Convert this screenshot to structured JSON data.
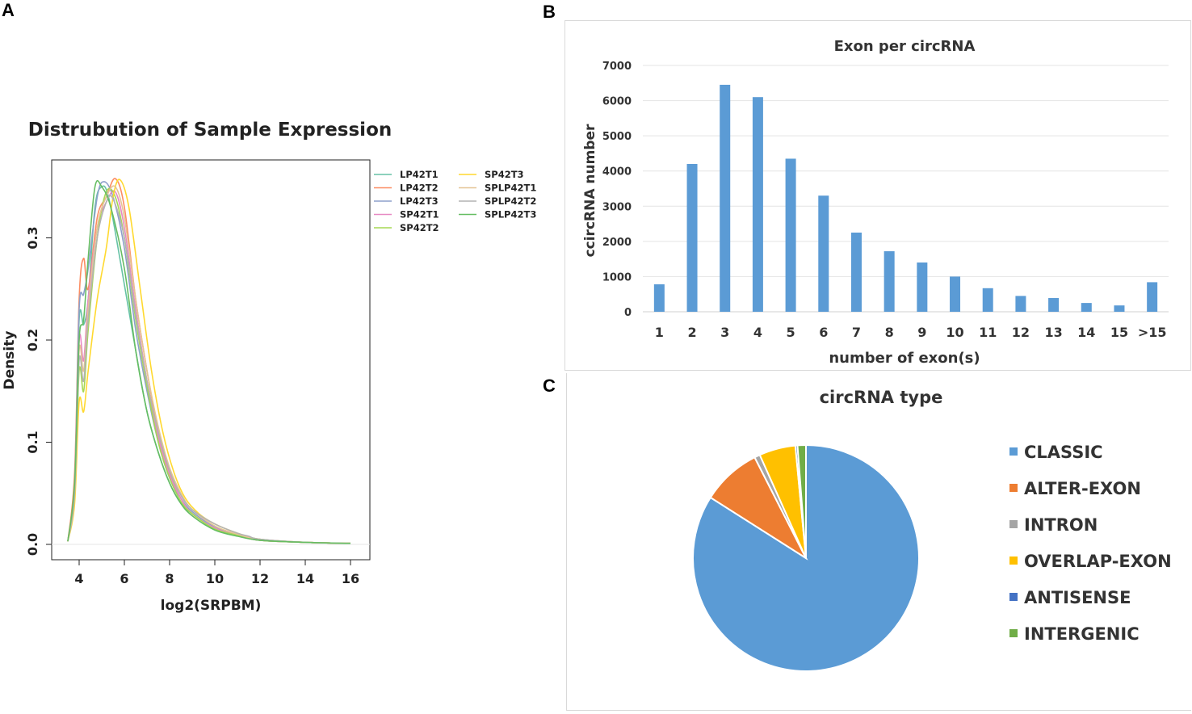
{
  "panels": {
    "a": "A",
    "b": "B",
    "c": "C"
  },
  "chart_data": [
    {
      "id": "density",
      "type": "line",
      "title": "Distrubution of Sample Expression",
      "xlabel": "log2(SRPBM)",
      "ylabel": "Density",
      "xlim": [
        3,
        16.5
      ],
      "ylim": [
        0,
        0.365
      ],
      "xticks": [
        4,
        6,
        8,
        10,
        12,
        14,
        16
      ],
      "yticks": [
        0.0,
        0.1,
        0.2,
        0.3
      ],
      "ytick_labels": [
        "0.0",
        "0.1",
        "0.2",
        "0.3"
      ],
      "legend_position": "top-right",
      "series": [
        {
          "name": "LP42T1",
          "color": "#66c2a5",
          "points": [
            [
              3.5,
              0.003
            ],
            [
              3.8,
              0.06
            ],
            [
              4.0,
              0.22
            ],
            [
              4.2,
              0.215
            ],
            [
              4.4,
              0.24
            ],
            [
              4.7,
              0.33
            ],
            [
              5.0,
              0.35
            ],
            [
              5.3,
              0.34
            ],
            [
              5.8,
              0.28
            ],
            [
              6.5,
              0.19
            ],
            [
              7.0,
              0.13
            ],
            [
              7.5,
              0.09
            ],
            [
              8.0,
              0.06
            ],
            [
              8.5,
              0.04
            ],
            [
              9.0,
              0.03
            ],
            [
              10.0,
              0.015
            ],
            [
              11.0,
              0.009
            ],
            [
              12.0,
              0.004
            ],
            [
              14.0,
              0.002
            ],
            [
              16.0,
              0.001
            ]
          ]
        },
        {
          "name": "LP42T2",
          "color": "#fc8d62",
          "points": [
            [
              3.5,
              0.003
            ],
            [
              3.8,
              0.07
            ],
            [
              4.0,
              0.24
            ],
            [
              4.2,
              0.28
            ],
            [
              4.4,
              0.25
            ],
            [
              4.8,
              0.32
            ],
            [
              5.2,
              0.34
            ],
            [
              5.6,
              0.358
            ],
            [
              6.0,
              0.33
            ],
            [
              6.5,
              0.24
            ],
            [
              7.0,
              0.17
            ],
            [
              7.5,
              0.11
            ],
            [
              8.0,
              0.07
            ],
            [
              8.5,
              0.045
            ],
            [
              9.0,
              0.03
            ],
            [
              10.0,
              0.016
            ],
            [
              11.0,
              0.009
            ],
            [
              12.0,
              0.004
            ],
            [
              14.0,
              0.002
            ],
            [
              16.0,
              0.001
            ]
          ]
        },
        {
          "name": "LP42T3",
          "color": "#8da0cb",
          "points": [
            [
              3.5,
              0.003
            ],
            [
              3.8,
              0.06
            ],
            [
              4.0,
              0.23
            ],
            [
              4.2,
              0.245
            ],
            [
              4.4,
              0.27
            ],
            [
              4.8,
              0.34
            ],
            [
              5.1,
              0.355
            ],
            [
              5.5,
              0.34
            ],
            [
              6.0,
              0.29
            ],
            [
              6.5,
              0.21
            ],
            [
              7.0,
              0.15
            ],
            [
              7.5,
              0.1
            ],
            [
              8.0,
              0.065
            ],
            [
              8.5,
              0.045
            ],
            [
              9.0,
              0.032
            ],
            [
              10.0,
              0.017
            ],
            [
              11.0,
              0.01
            ],
            [
              12.0,
              0.005
            ],
            [
              14.0,
              0.002
            ],
            [
              16.0,
              0.001
            ]
          ]
        },
        {
          "name": "SP42T1",
          "color": "#e78ac3",
          "points": [
            [
              3.5,
              0.003
            ],
            [
              3.8,
              0.05
            ],
            [
              4.0,
              0.2
            ],
            [
              4.2,
              0.18
            ],
            [
              4.4,
              0.24
            ],
            [
              4.8,
              0.31
            ],
            [
              5.2,
              0.335
            ],
            [
              5.6,
              0.345
            ],
            [
              6.0,
              0.31
            ],
            [
              6.5,
              0.23
            ],
            [
              7.0,
              0.16
            ],
            [
              7.5,
              0.105
            ],
            [
              8.0,
              0.068
            ],
            [
              8.5,
              0.045
            ],
            [
              9.0,
              0.03
            ],
            [
              10.0,
              0.016
            ],
            [
              11.0,
              0.009
            ],
            [
              12.0,
              0.004
            ],
            [
              14.0,
              0.002
            ],
            [
              16.0,
              0.001
            ]
          ]
        },
        {
          "name": "SP42T2",
          "color": "#a6d854",
          "points": [
            [
              3.5,
              0.003
            ],
            [
              3.8,
              0.05
            ],
            [
              4.0,
              0.17
            ],
            [
              4.2,
              0.15
            ],
            [
              4.4,
              0.21
            ],
            [
              4.8,
              0.3
            ],
            [
              5.2,
              0.345
            ],
            [
              5.6,
              0.34
            ],
            [
              6.0,
              0.3
            ],
            [
              6.5,
              0.22
            ],
            [
              7.0,
              0.155
            ],
            [
              7.5,
              0.1
            ],
            [
              8.0,
              0.065
            ],
            [
              8.5,
              0.042
            ],
            [
              9.0,
              0.03
            ],
            [
              10.0,
              0.015
            ],
            [
              11.0,
              0.009
            ],
            [
              12.0,
              0.004
            ],
            [
              14.0,
              0.002
            ],
            [
              16.0,
              0.001
            ]
          ]
        },
        {
          "name": "SP42T3",
          "color": "#ffd92f",
          "points": [
            [
              3.5,
              0.003
            ],
            [
              3.8,
              0.04
            ],
            [
              4.0,
              0.14
            ],
            [
              4.2,
              0.13
            ],
            [
              4.4,
              0.17
            ],
            [
              4.8,
              0.24
            ],
            [
              5.2,
              0.29
            ],
            [
              5.5,
              0.34
            ],
            [
              5.8,
              0.357
            ],
            [
              6.2,
              0.33
            ],
            [
              6.7,
              0.25
            ],
            [
              7.2,
              0.17
            ],
            [
              7.7,
              0.11
            ],
            [
              8.2,
              0.07
            ],
            [
              8.7,
              0.045
            ],
            [
              9.3,
              0.03
            ],
            [
              10.0,
              0.02
            ],
            [
              11.0,
              0.011
            ],
            [
              12.0,
              0.005
            ],
            [
              14.0,
              0.002
            ],
            [
              16.0,
              0.001
            ]
          ]
        },
        {
          "name": "SPLP42T1",
          "color": "#e5c494",
          "points": [
            [
              3.5,
              0.003
            ],
            [
              3.8,
              0.05
            ],
            [
              4.0,
              0.19
            ],
            [
              4.2,
              0.17
            ],
            [
              4.4,
              0.23
            ],
            [
              4.8,
              0.31
            ],
            [
              5.2,
              0.34
            ],
            [
              5.6,
              0.35
            ],
            [
              6.0,
              0.32
            ],
            [
              6.5,
              0.24
            ],
            [
              7.0,
              0.17
            ],
            [
              7.5,
              0.115
            ],
            [
              8.0,
              0.075
            ],
            [
              8.5,
              0.05
            ],
            [
              9.0,
              0.034
            ],
            [
              10.0,
              0.018
            ],
            [
              11.0,
              0.01
            ],
            [
              12.0,
              0.005
            ],
            [
              14.0,
              0.002
            ],
            [
              16.0,
              0.001
            ]
          ]
        },
        {
          "name": "SPLP42T2",
          "color": "#b3b3b3",
          "points": [
            [
              3.5,
              0.003
            ],
            [
              3.8,
              0.05
            ],
            [
              4.0,
              0.18
            ],
            [
              4.2,
              0.16
            ],
            [
              4.4,
              0.22
            ],
            [
              4.8,
              0.3
            ],
            [
              5.2,
              0.335
            ],
            [
              5.5,
              0.338
            ],
            [
              6.0,
              0.3
            ],
            [
              6.5,
              0.225
            ],
            [
              7.0,
              0.16
            ],
            [
              7.5,
              0.11
            ],
            [
              8.0,
              0.072
            ],
            [
              8.5,
              0.048
            ],
            [
              9.0,
              0.034
            ],
            [
              10.0,
              0.02
            ],
            [
              11.0,
              0.011
            ],
            [
              11.5,
              0.008
            ],
            [
              12.0,
              0.005
            ],
            [
              14.0,
              0.002
            ],
            [
              16.0,
              0.001
            ]
          ]
        },
        {
          "name": "SPLP42T3",
          "color": "#66bd63",
          "points": [
            [
              3.5,
              0.003
            ],
            [
              3.8,
              0.06
            ],
            [
              4.0,
              0.2
            ],
            [
              4.2,
              0.22
            ],
            [
              4.4,
              0.28
            ],
            [
              4.7,
              0.35
            ],
            [
              5.0,
              0.35
            ],
            [
              5.4,
              0.33
            ],
            [
              6.0,
              0.27
            ],
            [
              6.5,
              0.19
            ],
            [
              7.0,
              0.13
            ],
            [
              7.5,
              0.09
            ],
            [
              8.0,
              0.06
            ],
            [
              8.5,
              0.04
            ],
            [
              9.0,
              0.028
            ],
            [
              10.0,
              0.014
            ],
            [
              11.0,
              0.008
            ],
            [
              12.0,
              0.004
            ],
            [
              14.0,
              0.002
            ],
            [
              16.0,
              0.001
            ]
          ]
        }
      ]
    },
    {
      "id": "exon",
      "type": "bar",
      "title": "Exon per circRNA",
      "xlabel": "number of exon(s)",
      "ylabel": "ccircRNA number",
      "ylim": [
        0,
        7000
      ],
      "yticks": [
        0,
        1000,
        2000,
        3000,
        4000,
        5000,
        6000,
        7000
      ],
      "bar_color": "#5b9bd5",
      "categories": [
        "1",
        "2",
        "3",
        "4",
        "5",
        "6",
        "7",
        "8",
        "9",
        "10",
        "11",
        "12",
        "13",
        "14",
        "15",
        ">15"
      ],
      "values": [
        780,
        4200,
        6450,
        6100,
        4350,
        3300,
        2250,
        1720,
        1400,
        1000,
        670,
        450,
        390,
        250,
        180,
        840
      ]
    },
    {
      "id": "circtype",
      "type": "pie",
      "title": "circRNA type",
      "legend_position": "right",
      "slices": [
        {
          "label": "CLASSIC",
          "value": 84.0,
          "color": "#5b9bd5"
        },
        {
          "label": "ALTER-EXON",
          "value": 8.5,
          "color": "#ed7d31"
        },
        {
          "label": "INTRON",
          "value": 0.8,
          "color": "#a5a5a5"
        },
        {
          "label": "OVERLAP-EXON",
          "value": 5.2,
          "color": "#ffc000"
        },
        {
          "label": "ANTISENSE",
          "value": 0.3,
          "color": "#4472c4"
        },
        {
          "label": "INTERGENIC",
          "value": 1.2,
          "color": "#70ad47"
        }
      ]
    }
  ]
}
